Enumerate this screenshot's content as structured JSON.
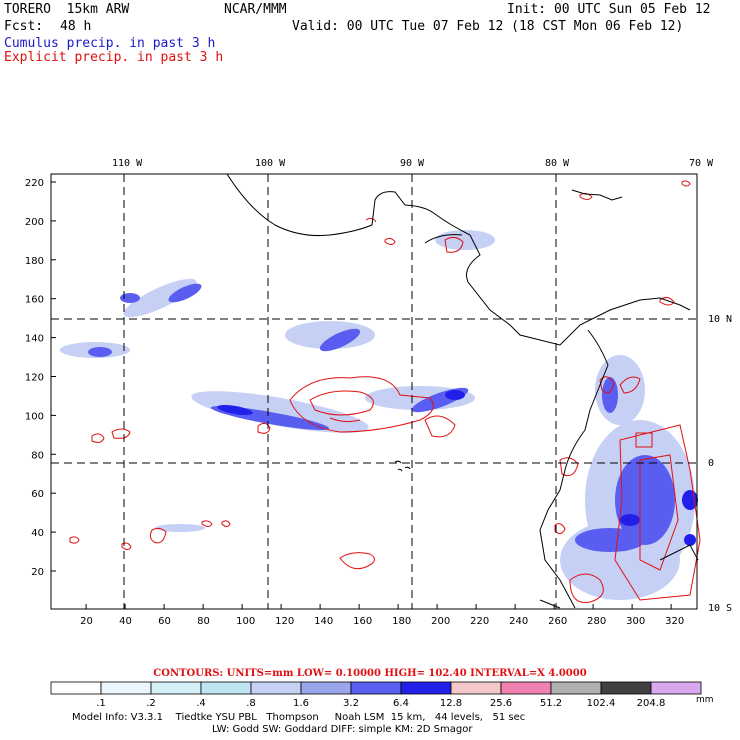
{
  "header": {
    "model": "TORERO  15km ARW",
    "org": "NCAR/MMM",
    "init": "Init: 00 UTC Sun 05 Feb 12",
    "fcst_label": "Fcst:",
    "fcst_value": "48 h",
    "valid": "Valid: 00 UTC Tue 07 Feb 12 (18 CST Mon 06 Feb 12)",
    "field1": "Cumulus precip. in past 3 h",
    "field2": "Explicit precip. in past 3 h"
  },
  "axes": {
    "x_ticks": [
      "20",
      "40",
      "60",
      "80",
      "100",
      "120",
      "140",
      "160",
      "180",
      "200",
      "220",
      "240",
      "260",
      "280",
      "300",
      "320"
    ],
    "y_ticks": [
      "20",
      "40",
      "60",
      "80",
      "100",
      "120",
      "140",
      "160",
      "180",
      "200",
      "220"
    ],
    "lon_labels": [
      "110 W",
      "100 W",
      "90 W",
      "80 W",
      "70 W"
    ],
    "lat_labels": [
      "10 N",
      "0",
      "10 S"
    ]
  },
  "contour_info": "CONTOURS:  UNITS=mm  LOW= 0.10000     HIGH=  102.40     INTERVAL=X  4.0000",
  "legend": {
    "unit": "mm",
    "labels": [
      ".1",
      ".2",
      ".4",
      ".8",
      "1.6",
      "3.2",
      "6.4",
      "12.8",
      "25.6",
      "51.2",
      "102.4",
      "204.8"
    ],
    "colors": [
      "#ffffff",
      "#eaf6fb",
      "#d6f0f8",
      "#bfe4f2",
      "#c6d0f5",
      "#9aa5ec",
      "#5a5ef0",
      "#2020e8",
      "#f4c8c8",
      "#f080b0",
      "#b0b0b0",
      "#404040",
      "#d8a8f0"
    ]
  },
  "footer": {
    "line1": "Model Info: V3.3.1    Tiedtke YSU PBL   Thompson     Noah LSM  15 km,   44 levels,   51 sec",
    "line2": "LW: Godd SW: Goddard DIFF: simple KM: 2D Smagor"
  },
  "colors": {
    "cumulus_text": "#1a1acc",
    "explicit_text": "#e01010",
    "coast": "#000000",
    "contour": "#e01010"
  }
}
